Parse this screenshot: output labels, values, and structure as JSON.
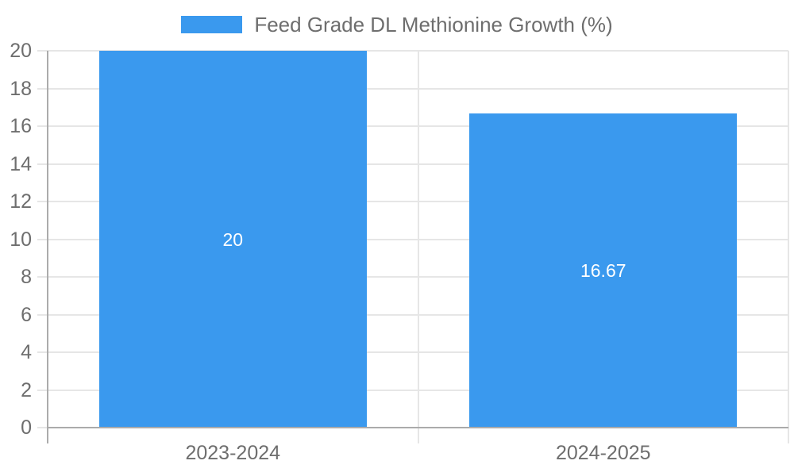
{
  "chart_data": {
    "type": "bar",
    "title": "",
    "xlabel": "",
    "ylabel": "",
    "series_name": "Feed Grade DL Methionine Growth (%)",
    "categories": [
      "2023-2024",
      "2024-2025"
    ],
    "values": [
      20,
      16.67
    ],
    "data_labels": [
      "20",
      "16.67"
    ],
    "y_ticks": [
      0,
      2,
      4,
      6,
      8,
      10,
      12,
      14,
      16,
      18,
      20
    ],
    "ylim": [
      0,
      20
    ],
    "grid": true,
    "legend_position": "top",
    "colors": {
      "bar": "#3a99ee",
      "bar_label": "#ffffff",
      "grid": "#e6e6e6",
      "axis_line": "#ababab",
      "tick_text": "#6e6e6e",
      "legend_text": "#6e6e6e",
      "background": "#ffffff"
    }
  }
}
